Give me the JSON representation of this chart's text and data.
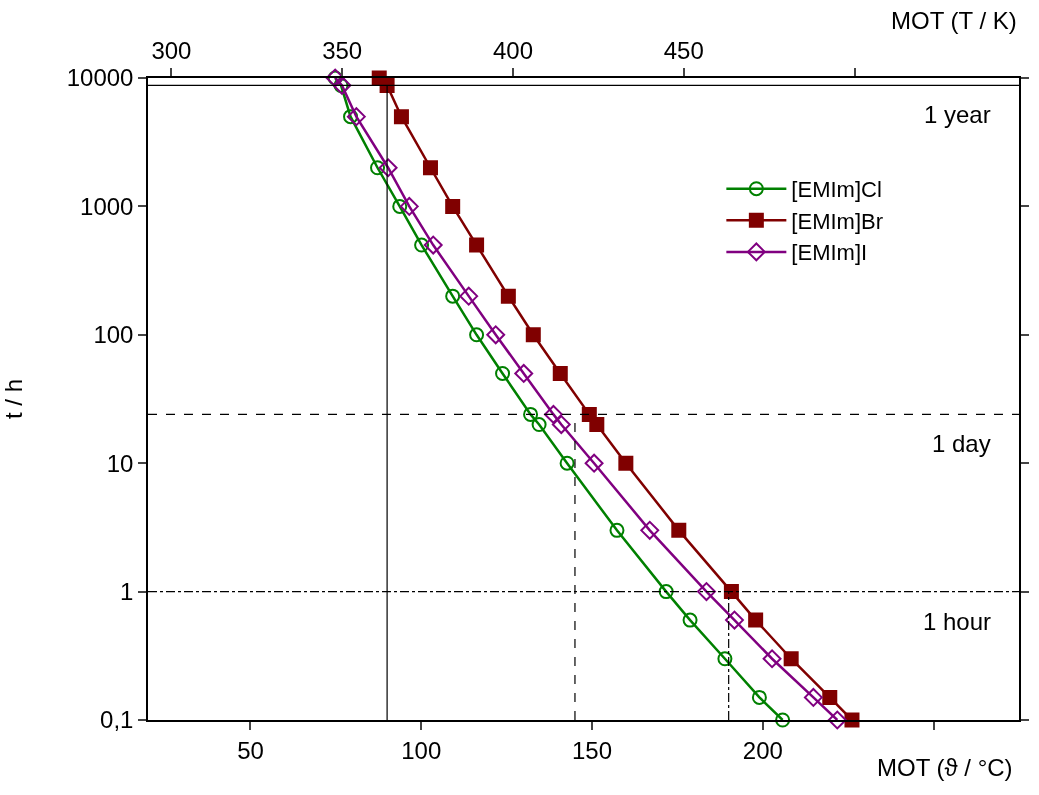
{
  "chart_data": {
    "type": "line",
    "xlabel": "MOT (ϑ / °C)",
    "x2label": "MOT (T / K)",
    "ylabel": "t / h",
    "series": [
      {
        "name": "[EMIm]Cl",
        "color": "#008000",
        "marker": "circle",
        "line_style": "solid",
        "x": [
          74.8,
          76.5,
          79.3,
          87.2,
          93.7,
          100.1,
          109.2,
          116.2,
          123.8,
          132.0,
          134.5,
          142.7,
          157.3,
          171.7,
          178.7,
          188.9,
          199.0,
          205.8
        ],
        "values": [
          10000,
          8760,
          5000,
          2000,
          1000,
          500,
          200,
          100,
          50,
          24,
          20,
          10,
          3,
          1,
          0.6,
          0.3,
          0.15,
          0.1
        ]
      },
      {
        "name": "[EMIm]Br",
        "color": "#800000",
        "marker": "square",
        "line_style": "solid",
        "x": [
          87.7,
          90.0,
          94.2,
          102.7,
          109.2,
          116.2,
          125.5,
          132.8,
          140.7,
          149.2,
          151.4,
          159.9,
          175.4,
          190.8,
          197.9,
          208.3,
          219.6,
          226.1
        ],
        "values": [
          10000,
          8760,
          5000,
          2000,
          1000,
          500,
          200,
          100,
          50,
          24,
          20,
          10,
          3,
          1,
          0.6,
          0.3,
          0.15,
          0.1
        ]
      },
      {
        "name": "[EMIm]I",
        "color": "#800080",
        "marker": "diamond",
        "line_style": "solid",
        "x": [
          74.8,
          76.8,
          81.0,
          90.3,
          96.5,
          103.5,
          113.9,
          121.8,
          130.0,
          138.7,
          141.0,
          150.6,
          166.9,
          183.5,
          191.7,
          202.7,
          214.8,
          221.8
        ],
        "values": [
          10000,
          8760,
          5000,
          2000,
          1000,
          500,
          200,
          100,
          50,
          24,
          20,
          10,
          3,
          1,
          0.6,
          0.3,
          0.15,
          0.1
        ]
      }
    ],
    "xlim": [
      20,
      275
    ],
    "xticks": [
      50,
      100,
      150,
      200,
      {
        "value": 250,
        "label": null
      }
    ],
    "x2lim": [
      293.15,
      548.15
    ],
    "x2ticks": [
      300,
      350,
      400,
      450,
      {
        "value": 500,
        "label": null
      }
    ],
    "ylim": [
      0.1,
      10000
    ],
    "yticks": [
      {
        "value": 0.1,
        "label": "0,1"
      },
      1,
      10,
      100,
      1000,
      10000
    ],
    "log": "y",
    "legend": "top right",
    "ref_lines": [
      {
        "axis": "y",
        "value": 8760,
        "label": "1 year",
        "color": "#000000",
        "line_style": "solid"
      },
      {
        "axis": "y",
        "value": 24,
        "label": "1 day",
        "color": "#000000",
        "line_style": "dashed"
      },
      {
        "axis": "y",
        "value": 1,
        "label": "1 hour",
        "color": "#000000",
        "line_style": "dashdot"
      },
      {
        "axis": "x",
        "value": 90,
        "color": "#000000",
        "line_style": "solid"
      },
      {
        "axis": "x",
        "value": 145,
        "color": "#000000",
        "line_style": "dashed"
      },
      {
        "axis": "x",
        "value": 190,
        "color": "#000000",
        "line_style": "dashdot"
      }
    ]
  }
}
